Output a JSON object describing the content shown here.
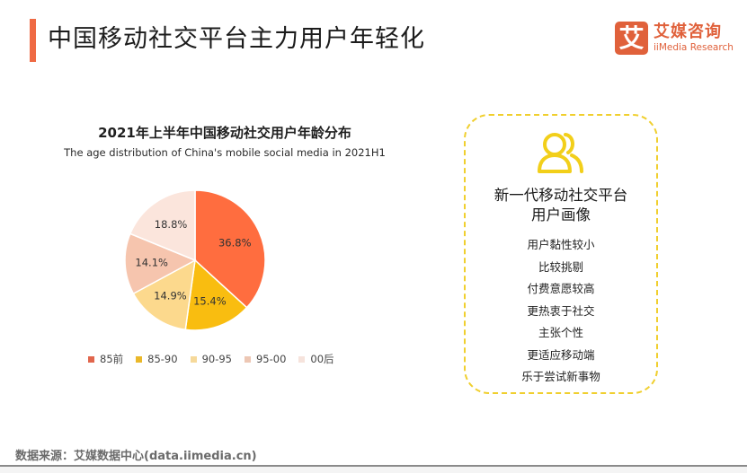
{
  "header": {
    "title": "中国移动社交平台主力用户年轻化",
    "accent_color": "#ef6a44"
  },
  "logo": {
    "mark": "艾",
    "name_cn": "艾媒咨询",
    "name_en": "iiMedia Research",
    "color": "#e0613b"
  },
  "chart_data": {
    "type": "pie",
    "title": "2021年上半年中国移动社交用户年龄分布",
    "subtitle": "The age distribution of China's mobile social media in 2021H1",
    "categories": [
      "85前",
      "85-90",
      "90-95",
      "95-00",
      "00后"
    ],
    "values": [
      36.8,
      15.4,
      14.9,
      14.1,
      18.8
    ],
    "labels": [
      "36.8%",
      "15.4%",
      "14.9%",
      "14.1%",
      "18.8%"
    ],
    "colors": [
      "#ff6d3f",
      "#f9bd10",
      "#fcd98d",
      "#f6c5ae",
      "#fbe5dc"
    ],
    "legend_colors": [
      "#e1664d",
      "#eab82a",
      "#f6d99a",
      "#edc7b4",
      "#f6e3dc"
    ],
    "start_angle_deg": 0,
    "direction": "clockwise",
    "legend_position": "bottom",
    "unit": "%"
  },
  "card": {
    "icon": "users-icon",
    "title_line1": "新一代移动社交平台",
    "title_line2": "用户画像",
    "traits": [
      "用户黏性较小",
      "比较挑剔",
      "付费意愿较高",
      "更热衷于社交",
      "主张个性",
      "更适应移动端",
      "乐于尝试新事物"
    ],
    "border_color": "#f0cf2e",
    "icon_color": "#f2cf1a"
  },
  "footer": {
    "source": "数据来源：艾媒数据中心(data.iimedia.cn)"
  }
}
